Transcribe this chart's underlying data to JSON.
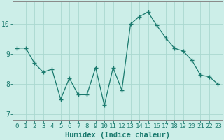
{
  "x": [
    0,
    1,
    2,
    3,
    4,
    5,
    6,
    7,
    8,
    9,
    10,
    11,
    12,
    13,
    14,
    15,
    16,
    17,
    18,
    19,
    20,
    21,
    22,
    23
  ],
  "y": [
    9.2,
    9.2,
    8.7,
    8.4,
    8.5,
    7.5,
    8.2,
    7.65,
    7.65,
    8.55,
    7.3,
    8.55,
    7.8,
    10.0,
    10.25,
    10.4,
    9.95,
    9.55,
    9.2,
    9.1,
    8.8,
    8.3,
    8.25,
    8.0
  ],
  "line_color": "#1a7a6e",
  "marker": "+",
  "marker_size": 4,
  "bg_color": "#cceee8",
  "grid_color": "#aad8d0",
  "xlabel": "Humidex (Indice chaleur)",
  "xlim": [
    -0.5,
    23.5
  ],
  "ylim": [
    6.8,
    10.75
  ],
  "yticks": [
    7,
    8,
    9,
    10
  ],
  "xticks": [
    0,
    1,
    2,
    3,
    4,
    5,
    6,
    7,
    8,
    9,
    10,
    11,
    12,
    13,
    14,
    15,
    16,
    17,
    18,
    19,
    20,
    21,
    22,
    23
  ],
  "tick_color": "#1a7a6e",
  "axis_color": "#888888",
  "xlabel_fontsize": 7.5,
  "tick_fontsize": 6.5
}
